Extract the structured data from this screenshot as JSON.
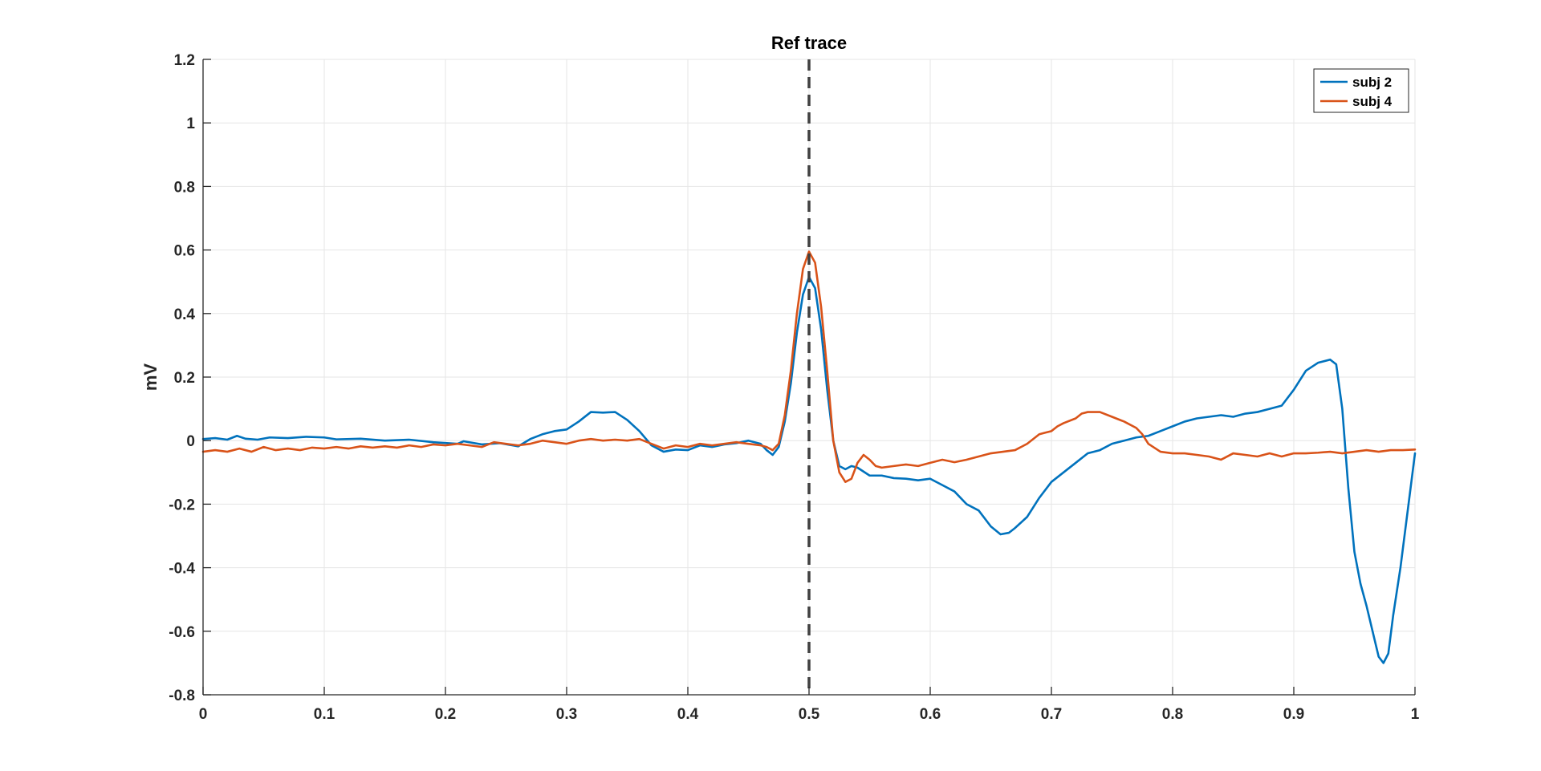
{
  "chart_data": {
    "type": "line",
    "title": "Ref trace",
    "xlabel": "",
    "ylabel": "mV",
    "xlim": [
      0,
      1
    ],
    "ylim": [
      -0.8,
      1.2
    ],
    "xticks": [
      0,
      0.1,
      0.2,
      0.3,
      0.4,
      0.5,
      0.6,
      0.7,
      0.8,
      0.9,
      1
    ],
    "xtick_labels": [
      "0",
      "0.1",
      "0.2",
      "0.3",
      "0.4",
      "0.5",
      "0.6",
      "0.7",
      "0.8",
      "0.9",
      "1"
    ],
    "yticks": [
      -0.8,
      -0.6,
      -0.4,
      -0.2,
      0,
      0.2,
      0.4,
      0.6,
      0.8,
      1,
      1.2
    ],
    "ytick_labels": [
      "-0.8",
      "-0.6",
      "-0.4",
      "-0.2",
      "0",
      "0.2",
      "0.4",
      "0.6",
      "0.8",
      "1",
      "1.2"
    ],
    "grid": true,
    "legend_position": "top-right",
    "reference_line": {
      "x": 0.5,
      "style": "dashed",
      "color": "#404040"
    },
    "series": [
      {
        "name": "subj 2",
        "color": "#0072BD",
        "points": [
          [
            0,
            0.005
          ],
          [
            0.01,
            0.008
          ],
          [
            0.02,
            0.003
          ],
          [
            0.028,
            0.015
          ],
          [
            0.035,
            0.006
          ],
          [
            0.045,
            0.003
          ],
          [
            0.055,
            0.01
          ],
          [
            0.07,
            0.008
          ],
          [
            0.085,
            0.012
          ],
          [
            0.1,
            0.01
          ],
          [
            0.11,
            0.004
          ],
          [
            0.13,
            0.006
          ],
          [
            0.15,
            0.0
          ],
          [
            0.17,
            0.003
          ],
          [
            0.19,
            -0.005
          ],
          [
            0.21,
            -0.01
          ],
          [
            0.215,
            -0.002
          ],
          [
            0.23,
            -0.012
          ],
          [
            0.245,
            -0.008
          ],
          [
            0.26,
            -0.018
          ],
          [
            0.27,
            0.005
          ],
          [
            0.28,
            0.02
          ],
          [
            0.29,
            0.03
          ],
          [
            0.3,
            0.035
          ],
          [
            0.31,
            0.06
          ],
          [
            0.32,
            0.09
          ],
          [
            0.33,
            0.088
          ],
          [
            0.34,
            0.09
          ],
          [
            0.35,
            0.065
          ],
          [
            0.36,
            0.03
          ],
          [
            0.37,
            -0.015
          ],
          [
            0.38,
            -0.035
          ],
          [
            0.39,
            -0.028
          ],
          [
            0.4,
            -0.03
          ],
          [
            0.41,
            -0.015
          ],
          [
            0.42,
            -0.02
          ],
          [
            0.43,
            -0.012
          ],
          [
            0.44,
            -0.008
          ],
          [
            0.45,
            0.0
          ],
          [
            0.46,
            -0.01
          ],
          [
            0.465,
            -0.03
          ],
          [
            0.47,
            -0.045
          ],
          [
            0.475,
            -0.02
          ],
          [
            0.48,
            0.06
          ],
          [
            0.485,
            0.18
          ],
          [
            0.49,
            0.34
          ],
          [
            0.495,
            0.46
          ],
          [
            0.5,
            0.515
          ],
          [
            0.505,
            0.48
          ],
          [
            0.51,
            0.35
          ],
          [
            0.515,
            0.16
          ],
          [
            0.52,
            0.0
          ],
          [
            0.525,
            -0.08
          ],
          [
            0.53,
            -0.09
          ],
          [
            0.535,
            -0.08
          ],
          [
            0.54,
            -0.085
          ],
          [
            0.55,
            -0.11
          ],
          [
            0.56,
            -0.11
          ],
          [
            0.57,
            -0.118
          ],
          [
            0.58,
            -0.12
          ],
          [
            0.59,
            -0.125
          ],
          [
            0.6,
            -0.12
          ],
          [
            0.61,
            -0.14
          ],
          [
            0.62,
            -0.16
          ],
          [
            0.63,
            -0.2
          ],
          [
            0.64,
            -0.22
          ],
          [
            0.65,
            -0.27
          ],
          [
            0.658,
            -0.295
          ],
          [
            0.665,
            -0.29
          ],
          [
            0.67,
            -0.275
          ],
          [
            0.68,
            -0.24
          ],
          [
            0.69,
            -0.18
          ],
          [
            0.7,
            -0.13
          ],
          [
            0.71,
            -0.1
          ],
          [
            0.72,
            -0.07
          ],
          [
            0.73,
            -0.04
          ],
          [
            0.74,
            -0.03
          ],
          [
            0.75,
            -0.01
          ],
          [
            0.76,
            0.0
          ],
          [
            0.77,
            0.01
          ],
          [
            0.78,
            0.015
          ],
          [
            0.79,
            0.03
          ],
          [
            0.8,
            0.045
          ],
          [
            0.81,
            0.06
          ],
          [
            0.82,
            0.07
          ],
          [
            0.83,
            0.075
          ],
          [
            0.84,
            0.08
          ],
          [
            0.85,
            0.075
          ],
          [
            0.86,
            0.085
          ],
          [
            0.87,
            0.09
          ],
          [
            0.88,
            0.1
          ],
          [
            0.89,
            0.11
          ],
          [
            0.9,
            0.16
          ],
          [
            0.91,
            0.22
          ],
          [
            0.92,
            0.245
          ],
          [
            0.93,
            0.255
          ],
          [
            0.935,
            0.24
          ],
          [
            0.94,
            0.1
          ],
          [
            0.945,
            -0.15
          ],
          [
            0.95,
            -0.35
          ],
          [
            0.955,
            -0.45
          ],
          [
            0.96,
            -0.52
          ],
          [
            0.965,
            -0.6
          ],
          [
            0.97,
            -0.68
          ],
          [
            0.974,
            -0.7
          ],
          [
            0.978,
            -0.67
          ],
          [
            0.982,
            -0.55
          ],
          [
            0.988,
            -0.4
          ],
          [
            0.994,
            -0.22
          ],
          [
            1.0,
            -0.04
          ]
        ]
      },
      {
        "name": "subj 4",
        "color": "#D95319",
        "points": [
          [
            0,
            -0.035
          ],
          [
            0.01,
            -0.03
          ],
          [
            0.02,
            -0.035
          ],
          [
            0.03,
            -0.025
          ],
          [
            0.04,
            -0.035
          ],
          [
            0.05,
            -0.02
          ],
          [
            0.06,
            -0.03
          ],
          [
            0.07,
            -0.025
          ],
          [
            0.08,
            -0.03
          ],
          [
            0.09,
            -0.022
          ],
          [
            0.1,
            -0.025
          ],
          [
            0.11,
            -0.02
          ],
          [
            0.12,
            -0.025
          ],
          [
            0.13,
            -0.018
          ],
          [
            0.14,
            -0.022
          ],
          [
            0.15,
            -0.018
          ],
          [
            0.16,
            -0.022
          ],
          [
            0.17,
            -0.015
          ],
          [
            0.18,
            -0.02
          ],
          [
            0.19,
            -0.012
          ],
          [
            0.2,
            -0.015
          ],
          [
            0.21,
            -0.01
          ],
          [
            0.22,
            -0.015
          ],
          [
            0.23,
            -0.02
          ],
          [
            0.24,
            -0.005
          ],
          [
            0.25,
            -0.01
          ],
          [
            0.26,
            -0.015
          ],
          [
            0.27,
            -0.01
          ],
          [
            0.28,
            0.0
          ],
          [
            0.29,
            -0.005
          ],
          [
            0.3,
            -0.01
          ],
          [
            0.31,
            0.0
          ],
          [
            0.32,
            0.005
          ],
          [
            0.33,
            0.0
          ],
          [
            0.34,
            0.003
          ],
          [
            0.35,
            0.0
          ],
          [
            0.36,
            0.005
          ],
          [
            0.37,
            -0.01
          ],
          [
            0.38,
            -0.025
          ],
          [
            0.39,
            -0.015
          ],
          [
            0.4,
            -0.02
          ],
          [
            0.41,
            -0.01
          ],
          [
            0.42,
            -0.015
          ],
          [
            0.43,
            -0.01
          ],
          [
            0.44,
            -0.005
          ],
          [
            0.45,
            -0.01
          ],
          [
            0.46,
            -0.015
          ],
          [
            0.465,
            -0.02
          ],
          [
            0.47,
            -0.03
          ],
          [
            0.475,
            -0.01
          ],
          [
            0.48,
            0.08
          ],
          [
            0.485,
            0.22
          ],
          [
            0.49,
            0.4
          ],
          [
            0.495,
            0.54
          ],
          [
            0.5,
            0.595
          ],
          [
            0.505,
            0.56
          ],
          [
            0.51,
            0.42
          ],
          [
            0.515,
            0.22
          ],
          [
            0.52,
            0.0
          ],
          [
            0.525,
            -0.1
          ],
          [
            0.53,
            -0.13
          ],
          [
            0.535,
            -0.12
          ],
          [
            0.54,
            -0.07
          ],
          [
            0.545,
            -0.045
          ],
          [
            0.55,
            -0.06
          ],
          [
            0.555,
            -0.08
          ],
          [
            0.56,
            -0.085
          ],
          [
            0.57,
            -0.08
          ],
          [
            0.58,
            -0.075
          ],
          [
            0.59,
            -0.08
          ],
          [
            0.6,
            -0.07
          ],
          [
            0.61,
            -0.06
          ],
          [
            0.62,
            -0.068
          ],
          [
            0.63,
            -0.06
          ],
          [
            0.64,
            -0.05
          ],
          [
            0.65,
            -0.04
          ],
          [
            0.66,
            -0.035
          ],
          [
            0.67,
            -0.03
          ],
          [
            0.68,
            -0.01
          ],
          [
            0.69,
            0.02
          ],
          [
            0.695,
            0.025
          ],
          [
            0.7,
            0.03
          ],
          [
            0.705,
            0.045
          ],
          [
            0.71,
            0.055
          ],
          [
            0.72,
            0.07
          ],
          [
            0.725,
            0.085
          ],
          [
            0.73,
            0.09
          ],
          [
            0.74,
            0.09
          ],
          [
            0.75,
            0.075
          ],
          [
            0.76,
            0.06
          ],
          [
            0.77,
            0.04
          ],
          [
            0.775,
            0.02
          ],
          [
            0.78,
            -0.01
          ],
          [
            0.79,
            -0.035
          ],
          [
            0.8,
            -0.04
          ],
          [
            0.81,
            -0.04
          ],
          [
            0.82,
            -0.045
          ],
          [
            0.83,
            -0.05
          ],
          [
            0.84,
            -0.06
          ],
          [
            0.85,
            -0.04
          ],
          [
            0.86,
            -0.045
          ],
          [
            0.87,
            -0.05
          ],
          [
            0.88,
            -0.04
          ],
          [
            0.89,
            -0.05
          ],
          [
            0.9,
            -0.04
          ],
          [
            0.91,
            -0.04
          ],
          [
            0.92,
            -0.038
          ],
          [
            0.93,
            -0.035
          ],
          [
            0.94,
            -0.04
          ],
          [
            0.95,
            -0.035
          ],
          [
            0.96,
            -0.03
          ],
          [
            0.97,
            -0.035
          ],
          [
            0.98,
            -0.03
          ],
          [
            0.99,
            -0.03
          ],
          [
            1.0,
            -0.028
          ]
        ]
      }
    ]
  }
}
